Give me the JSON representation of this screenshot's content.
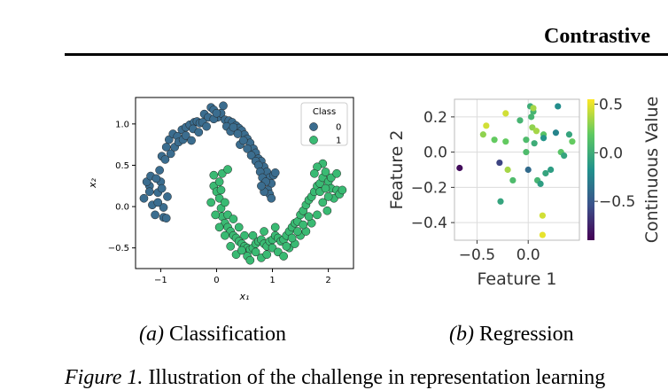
{
  "header": {
    "title": "Contrastive"
  },
  "chart_data": [
    {
      "type": "scatter",
      "title": "",
      "xlabel": "x₁",
      "ylabel": "x₂",
      "xlim": [
        -1.45,
        2.45
      ],
      "ylim": [
        -0.75,
        1.32
      ],
      "xticks": [
        -1,
        0,
        1,
        2
      ],
      "xtick_labels": [
        "−1",
        "0",
        "1",
        "2"
      ],
      "yticks": [
        -0.5,
        0.0,
        0.5,
        1.0
      ],
      "ytick_labels": [
        "−0.5",
        "0.0",
        "0.5",
        "1.0"
      ],
      "grid": false,
      "legend": {
        "title": "Class",
        "placement": "top-right",
        "entries": [
          "0",
          "1"
        ]
      },
      "colors": {
        "0": "#3b6d8f",
        "1": "#3aba73"
      },
      "series": [
        {
          "name": "0",
          "points": [
            [
              -1.05,
              0.17
            ],
            [
              -1.02,
              0.44
            ],
            [
              -0.98,
              0.61
            ],
            [
              -0.92,
              0.57
            ],
            [
              -0.9,
              0.72
            ],
            [
              -0.85,
              0.81
            ],
            [
              -0.78,
              0.88
            ],
            [
              -0.7,
              0.85
            ],
            [
              -0.62,
              0.93
            ],
            [
              -0.55,
              0.96
            ],
            [
              -0.48,
              0.99
            ],
            [
              -0.4,
              1.02
            ],
            [
              -0.35,
              1.03
            ],
            [
              -0.3,
              1.01
            ],
            [
              -0.22,
              1.12
            ],
            [
              -0.15,
              1.08
            ],
            [
              -0.1,
              1.2
            ],
            [
              -0.05,
              1.17
            ],
            [
              0.02,
              1.08
            ],
            [
              0.08,
              1.13
            ],
            [
              0.15,
              1.05
            ],
            [
              0.22,
              1.04
            ],
            [
              0.28,
              1.02
            ],
            [
              0.35,
              0.98
            ],
            [
              0.4,
              0.95
            ],
            [
              0.45,
              0.92
            ],
            [
              0.5,
              0.87
            ],
            [
              0.55,
              0.82
            ],
            [
              0.6,
              0.77
            ],
            [
              0.66,
              0.7
            ],
            [
              0.7,
              0.65
            ],
            [
              0.75,
              0.58
            ],
            [
              0.8,
              0.55
            ],
            [
              0.85,
              0.48
            ],
            [
              0.9,
              0.42
            ],
            [
              0.95,
              0.35
            ],
            [
              0.98,
              0.28
            ],
            [
              1.02,
              0.38
            ],
            [
              1.05,
              0.41
            ],
            [
              -1.15,
              0.02
            ],
            [
              -1.2,
              0.25
            ],
            [
              -1.25,
              0.3
            ],
            [
              -1.3,
              0.1
            ],
            [
              -1.18,
              0.37
            ],
            [
              -1.1,
              -0.1
            ],
            [
              -0.95,
              -0.01
            ],
            [
              -0.95,
              -0.13
            ],
            [
              -1.0,
              0.3
            ],
            [
              -0.88,
              0.12
            ],
            [
              -0.82,
              0.64
            ],
            [
              -0.75,
              0.72
            ],
            [
              -0.68,
              0.78
            ],
            [
              -0.6,
              0.81
            ],
            [
              -0.55,
              0.86
            ],
            [
              -0.45,
              0.8
            ],
            [
              -0.42,
              0.94
            ],
            [
              -0.32,
              0.9
            ],
            [
              -0.25,
              1.02
            ],
            [
              -0.18,
              0.97
            ],
            [
              -0.05,
              1.06
            ],
            [
              0.0,
              1.13
            ],
            [
              0.12,
              1.22
            ],
            [
              0.18,
              0.97
            ],
            [
              0.25,
              0.91
            ],
            [
              0.3,
              0.96
            ],
            [
              0.38,
              0.88
            ],
            [
              0.42,
              0.75
            ],
            [
              0.48,
              0.8
            ],
            [
              0.55,
              0.7
            ],
            [
              0.62,
              0.62
            ],
            [
              0.7,
              0.55
            ],
            [
              0.75,
              0.5
            ],
            [
              0.78,
              0.42
            ],
            [
              0.82,
              0.35
            ],
            [
              0.88,
              0.3
            ],
            [
              0.92,
              0.2
            ],
            [
              0.95,
              0.15
            ],
            [
              0.98,
              0.1
            ],
            [
              0.85,
              0.18
            ],
            [
              0.8,
              0.25
            ],
            [
              -1.05,
              0.05
            ],
            [
              -0.98,
              0.22
            ],
            [
              -1.08,
              0.34
            ],
            [
              -1.2,
              0.18
            ],
            [
              -0.9,
              -0.14
            ]
          ]
        },
        {
          "name": "1",
          "points": [
            [
              -0.05,
              0.25
            ],
            [
              0.0,
              0.18
            ],
            [
              0.05,
              0.1
            ],
            [
              0.08,
              -0.02
            ],
            [
              0.1,
              -0.12
            ],
            [
              0.15,
              -0.2
            ],
            [
              0.2,
              -0.25
            ],
            [
              0.25,
              -0.3
            ],
            [
              0.3,
              -0.35
            ],
            [
              0.35,
              -0.38
            ],
            [
              0.4,
              -0.42
            ],
            [
              0.45,
              -0.45
            ],
            [
              0.5,
              -0.48
            ],
            [
              0.55,
              -0.5
            ],
            [
              0.6,
              -0.52
            ],
            [
              0.65,
              -0.5
            ],
            [
              0.7,
              -0.45
            ],
            [
              0.75,
              -0.42
            ],
            [
              0.8,
              -0.4
            ],
            [
              0.85,
              -0.45
            ],
            [
              0.9,
              -0.48
            ],
            [
              0.95,
              -0.42
            ],
            [
              1.0,
              -0.4
            ],
            [
              1.05,
              -0.35
            ],
            [
              1.1,
              -0.38
            ],
            [
              1.15,
              -0.42
            ],
            [
              1.2,
              -0.4
            ],
            [
              1.25,
              -0.35
            ],
            [
              1.3,
              -0.3
            ],
            [
              1.35,
              -0.25
            ],
            [
              1.4,
              -0.2
            ],
            [
              1.45,
              -0.18
            ],
            [
              1.5,
              -0.1
            ],
            [
              1.55,
              -0.05
            ],
            [
              1.6,
              0.02
            ],
            [
              1.65,
              0.08
            ],
            [
              1.7,
              0.12
            ],
            [
              1.75,
              0.18
            ],
            [
              1.8,
              0.25
            ],
            [
              1.85,
              0.28
            ],
            [
              1.9,
              0.35
            ],
            [
              1.95,
              0.42
            ],
            [
              2.0,
              0.3
            ],
            [
              2.05,
              0.22
            ],
            [
              2.1,
              0.1
            ],
            [
              2.15,
              0.2
            ],
            [
              2.2,
              0.15
            ],
            [
              1.9,
              0.52
            ],
            [
              1.8,
              0.48
            ],
            [
              1.75,
              0.4
            ],
            [
              0.1,
              0.4
            ],
            [
              0.2,
              0.45
            ],
            [
              -0.1,
              0.05
            ],
            [
              -0.05,
              0.38
            ],
            [
              0.05,
              0.3
            ],
            [
              0.15,
              0.05
            ],
            [
              0.2,
              -0.1
            ],
            [
              0.3,
              -0.15
            ],
            [
              0.4,
              -0.25
            ],
            [
              0.5,
              -0.35
            ],
            [
              0.55,
              -0.6
            ],
            [
              0.6,
              -0.65
            ],
            [
              0.7,
              -0.55
            ],
            [
              0.8,
              -0.62
            ],
            [
              0.9,
              -0.58
            ],
            [
              1.0,
              -0.5
            ],
            [
              1.1,
              -0.55
            ],
            [
              1.2,
              -0.6
            ],
            [
              1.3,
              -0.5
            ],
            [
              1.4,
              -0.45
            ],
            [
              1.5,
              -0.35
            ],
            [
              1.6,
              -0.3
            ],
            [
              1.7,
              -0.2
            ],
            [
              1.8,
              -0.1
            ],
            [
              1.9,
              0.05
            ],
            [
              2.0,
              0.12
            ],
            [
              1.85,
              0.18
            ],
            [
              1.95,
              0.22
            ],
            [
              2.05,
              0.35
            ],
            [
              2.15,
              0.4
            ],
            [
              1.65,
              -0.12
            ],
            [
              1.55,
              -0.22
            ],
            [
              1.45,
              -0.3
            ],
            [
              1.35,
              -0.38
            ],
            [
              1.25,
              -0.48
            ],
            [
              0.35,
              -0.58
            ],
            [
              0.45,
              -0.53
            ],
            [
              0.25,
              -0.48
            ],
            [
              0.15,
              -0.35
            ],
            [
              0.05,
              -0.25
            ],
            [
              -0.02,
              -0.1
            ],
            [
              0.08,
              0.2
            ],
            [
              2.25,
              0.2
            ],
            [
              1.98,
              -0.05
            ],
            [
              0.65,
              -0.35
            ],
            [
              0.85,
              -0.3
            ],
            [
              1.05,
              -0.25
            ]
          ]
        }
      ]
    },
    {
      "type": "scatter",
      "title": "",
      "xlabel": "Feature 1",
      "ylabel": "Feature 2",
      "xlim": [
        -0.72,
        0.5
      ],
      "ylim": [
        -0.5,
        0.3
      ],
      "xticks": [
        -0.5,
        0.0
      ],
      "xtick_labels": [
        "−0.5",
        "0.0"
      ],
      "yticks": [
        -0.4,
        -0.2,
        0.0,
        0.2
      ],
      "ytick_labels": [
        "−0.4",
        "−0.2",
        "0.0",
        "0.2"
      ],
      "grid": true,
      "colorbar": {
        "label": "Continuous Value",
        "min": -0.9,
        "max": 0.55,
        "ticks": [
          0.5,
          0.0,
          -0.5
        ],
        "tick_labels": [
          "0.5",
          "0.0",
          "−0.5"
        ],
        "colormap": "viridis"
      },
      "points": [
        {
          "x": -0.67,
          "y": -0.09,
          "value": -0.85
        },
        {
          "x": -0.41,
          "y": 0.15,
          "value": 0.45
        },
        {
          "x": -0.44,
          "y": 0.1,
          "value": 0.3
        },
        {
          "x": -0.33,
          "y": 0.07,
          "value": 0.2
        },
        {
          "x": -0.28,
          "y": -0.06,
          "value": -0.6
        },
        {
          "x": -0.27,
          "y": -0.28,
          "value": -0.05
        },
        {
          "x": -0.22,
          "y": 0.22,
          "value": 0.45
        },
        {
          "x": -0.22,
          "y": 0.06,
          "value": 0.2
        },
        {
          "x": -0.2,
          "y": -0.1,
          "value": 0.35
        },
        {
          "x": -0.15,
          "y": -0.16,
          "value": 0.1
        },
        {
          "x": -0.08,
          "y": 0.18,
          "value": 0.05
        },
        {
          "x": -0.02,
          "y": 0.07,
          "value": 0.1
        },
        {
          "x": 0.0,
          "y": -0.1,
          "value": -0.4
        },
        {
          "x": 0.02,
          "y": 0.26,
          "value": 0.0
        },
        {
          "x": 0.03,
          "y": 0.2,
          "value": 0.05
        },
        {
          "x": 0.04,
          "y": 0.14,
          "value": 0.3
        },
        {
          "x": 0.05,
          "y": 0.23,
          "value": 0.05
        },
        {
          "x": 0.06,
          "y": 0.05,
          "value": 0.0
        },
        {
          "x": 0.08,
          "y": 0.12,
          "value": 0.35
        },
        {
          "x": 0.09,
          "y": -0.16,
          "value": 0.05
        },
        {
          "x": 0.12,
          "y": -0.18,
          "value": -0.1
        },
        {
          "x": 0.14,
          "y": -0.36,
          "value": 0.45
        },
        {
          "x": 0.14,
          "y": -0.47,
          "value": 0.5
        },
        {
          "x": 0.15,
          "y": 0.1,
          "value": 0.15
        },
        {
          "x": 0.17,
          "y": -0.12,
          "value": -0.05
        },
        {
          "x": 0.22,
          "y": -0.1,
          "value": -0.1
        },
        {
          "x": 0.27,
          "y": 0.11,
          "value": -0.25
        },
        {
          "x": 0.29,
          "y": 0.26,
          "value": -0.2
        },
        {
          "x": 0.32,
          "y": 0.0,
          "value": 0.15
        },
        {
          "x": 0.35,
          "y": -0.02,
          "value": -0.05
        },
        {
          "x": 0.4,
          "y": 0.1,
          "value": -0.05
        },
        {
          "x": 0.43,
          "y": 0.06,
          "value": 0.2
        },
        {
          "x": 0.15,
          "y": 0.08,
          "value": -0.15
        },
        {
          "x": 0.05,
          "y": 0.25,
          "value": 0.35
        },
        {
          "x": -0.02,
          "y": 0.0,
          "value": 0.1
        }
      ]
    }
  ],
  "captions": {
    "a_label": "(a)",
    "a_text": " Classification",
    "b_label": "(b)",
    "b_text": " Regression",
    "figure_label": "Figure 1.",
    "figure_text": " Illustration of the challenge in representation learning"
  }
}
